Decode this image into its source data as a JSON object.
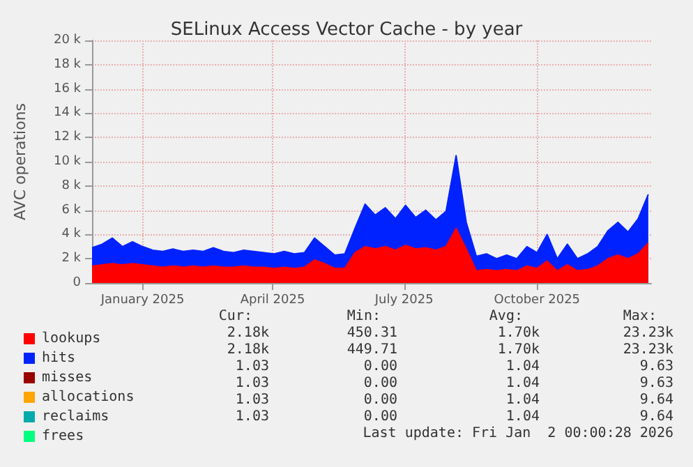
{
  "chart_data": {
    "type": "area",
    "title": "SELinux Access Vector Cache - by year",
    "ylabel": "AVC operations",
    "stacked": true,
    "grid": true,
    "legend": "bottom",
    "x": [
      "2024-11-27",
      "2024-12-04",
      "2024-12-11",
      "2024-12-18",
      "2024-12-25",
      "2025-01-01",
      "2025-01-08",
      "2025-01-15",
      "2025-01-22",
      "2025-01-29",
      "2025-02-05",
      "2025-02-12",
      "2025-02-19",
      "2025-02-26",
      "2025-03-05",
      "2025-03-12",
      "2025-03-19",
      "2025-03-26",
      "2025-04-02",
      "2025-04-09",
      "2025-04-16",
      "2025-04-23",
      "2025-04-30",
      "2025-05-07",
      "2025-05-14",
      "2025-05-21",
      "2025-05-28",
      "2025-06-04",
      "2025-06-11",
      "2025-06-18",
      "2025-06-25",
      "2025-07-02",
      "2025-07-09",
      "2025-07-16",
      "2025-07-23",
      "2025-07-30",
      "2025-08-06",
      "2025-08-13",
      "2025-08-20",
      "2025-08-27",
      "2025-09-03",
      "2025-09-10",
      "2025-09-17",
      "2025-09-24",
      "2025-10-01",
      "2025-10-08",
      "2025-10-15",
      "2025-10-22",
      "2025-10-29",
      "2025-11-05",
      "2025-11-12",
      "2025-11-19",
      "2025-11-26",
      "2025-12-03",
      "2025-12-10",
      "2025-12-17"
    ],
    "xlim": [
      "2024-11-27",
      "2025-12-19"
    ],
    "xticks": [
      {
        "value": "2025-01-01",
        "label": "January 2025"
      },
      {
        "value": "2025-04-01",
        "label": "April 2025"
      },
      {
        "value": "2025-07-01",
        "label": "July 2025"
      },
      {
        "value": "2025-10-01",
        "label": "October 2025"
      }
    ],
    "ylim": [
      0,
      20000
    ],
    "yticks": [
      {
        "value": 0,
        "label": "0"
      },
      {
        "value": 2000,
        "label": "2 k"
      },
      {
        "value": 4000,
        "label": "4 k"
      },
      {
        "value": 6000,
        "label": "6 k"
      },
      {
        "value": 8000,
        "label": "8 k"
      },
      {
        "value": 10000,
        "label": "10 k"
      },
      {
        "value": 12000,
        "label": "12 k"
      },
      {
        "value": 14000,
        "label": "14 k"
      },
      {
        "value": 16000,
        "label": "16 k"
      },
      {
        "value": 18000,
        "label": "18 k"
      },
      {
        "value": 20000,
        "label": "20 k"
      }
    ],
    "series": [
      {
        "name": "lookups",
        "color": "#ff0000",
        "values": [
          1400,
          1500,
          1600,
          1500,
          1600,
          1500,
          1400,
          1300,
          1400,
          1300,
          1400,
          1300,
          1400,
          1300,
          1300,
          1400,
          1300,
          1300,
          1200,
          1300,
          1200,
          1300,
          1900,
          1600,
          1200,
          1200,
          2500,
          3000,
          2800,
          3000,
          2700,
          3100,
          2800,
          2900,
          2700,
          3000,
          4500,
          2800,
          1000,
          1100,
          1000,
          1100,
          1000,
          1400,
          1200,
          1800,
          1000,
          1500,
          1000,
          1100,
          1400,
          2000,
          2300,
          2000,
          2400,
          3300
        ]
      },
      {
        "name": "hits",
        "color": "#0022ff",
        "values": [
          1500,
          1700,
          2100,
          1500,
          1800,
          1500,
          1300,
          1300,
          1400,
          1300,
          1300,
          1300,
          1500,
          1300,
          1200,
          1300,
          1300,
          1200,
          1200,
          1300,
          1200,
          1200,
          1800,
          1400,
          1100,
          1200,
          2000,
          3500,
          2800,
          3200,
          2600,
          3300,
          2600,
          3100,
          2500,
          2900,
          6000,
          2200,
          1200,
          1300,
          1000,
          1200,
          1000,
          1600,
          1300,
          2200,
          1000,
          1700,
          1000,
          1300,
          1600,
          2300,
          2700,
          2200,
          2900,
          4000
        ]
      },
      {
        "name": "misses",
        "color": "#990000",
        "values": [
          null,
          null,
          null,
          null,
          null,
          null,
          null,
          null,
          null,
          null,
          null,
          null,
          null,
          null,
          null,
          null,
          null,
          null,
          null,
          null,
          null,
          null,
          null,
          null,
          null,
          null,
          null,
          null,
          null,
          null,
          null,
          null,
          null,
          null,
          null,
          null,
          null,
          null,
          null,
          null,
          null,
          null,
          null,
          null,
          null,
          null,
          null,
          null,
          null,
          null,
          null,
          null,
          null,
          null,
          null,
          null
        ]
      },
      {
        "name": "allocations",
        "color": "#ffa500",
        "values": [
          null,
          null,
          null,
          null,
          null,
          null,
          null,
          null,
          null,
          null,
          null,
          null,
          null,
          null,
          null,
          null,
          null,
          null,
          null,
          null,
          null,
          null,
          null,
          null,
          null,
          null,
          null,
          null,
          null,
          null,
          null,
          null,
          null,
          null,
          null,
          null,
          null,
          null,
          null,
          null,
          null,
          null,
          null,
          null,
          null,
          null,
          null,
          null,
          null,
          null,
          null,
          null,
          null,
          null,
          null,
          null
        ]
      },
      {
        "name": "reclaims",
        "color": "#00aaaa",
        "values": [
          null,
          null,
          null,
          null,
          null,
          null,
          null,
          null,
          null,
          null,
          null,
          null,
          null,
          null,
          null,
          null,
          null,
          null,
          null,
          null,
          null,
          null,
          null,
          null,
          null,
          null,
          null,
          null,
          null,
          null,
          null,
          null,
          null,
          null,
          null,
          null,
          null,
          null,
          null,
          null,
          null,
          null,
          null,
          null,
          null,
          null,
          null,
          null,
          null,
          null,
          null,
          null,
          null,
          null,
          null,
          null
        ]
      },
      {
        "name": "frees",
        "color": "#00ff7f",
        "values": [
          null,
          null,
          null,
          null,
          null,
          null,
          null,
          null,
          null,
          null,
          null,
          null,
          null,
          null,
          null,
          null,
          null,
          null,
          null,
          null,
          null,
          null,
          null,
          null,
          null,
          null,
          null,
          null,
          null,
          null,
          null,
          null,
          null,
          null,
          null,
          null,
          null,
          null,
          null,
          null,
          null,
          null,
          null,
          null,
          null,
          null,
          null,
          null,
          null,
          null,
          null,
          null,
          null,
          null,
          null,
          null
        ]
      }
    ],
    "annotations": [
      "Cur:",
      "Min:",
      "Avg:",
      "Max:",
      "2.18k",
      "450.31",
      "1.70k",
      "23.23k",
      "2.18k",
      "449.71",
      "1.70k",
      "23.23k",
      "1.03",
      "0.00",
      "1.04",
      "9.63",
      "1.03",
      "0.00",
      "1.04",
      "9.63",
      "1.03",
      "0.00",
      "1.04",
      "9.64",
      "1.03",
      "0.00",
      "1.04",
      "9.64",
      "Last update: Fri Jan  2 00:00:28 2026"
    ]
  }
}
